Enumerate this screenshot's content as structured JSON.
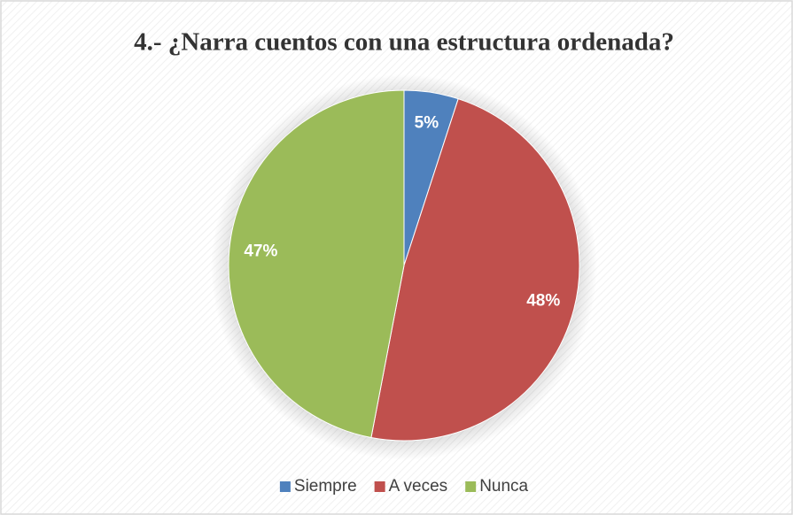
{
  "chart_data": {
    "type": "pie",
    "title": "4.- ¿Narra cuentos con  una estructura ordenada?",
    "categories": [
      "Siempre",
      "A veces",
      "Nunca"
    ],
    "values": [
      5,
      48,
      47
    ],
    "value_labels": [
      "5%",
      "48%",
      "47%"
    ],
    "colors": [
      "#4f81bd",
      "#c0504d",
      "#9bbb59"
    ],
    "legend": "bottom"
  }
}
